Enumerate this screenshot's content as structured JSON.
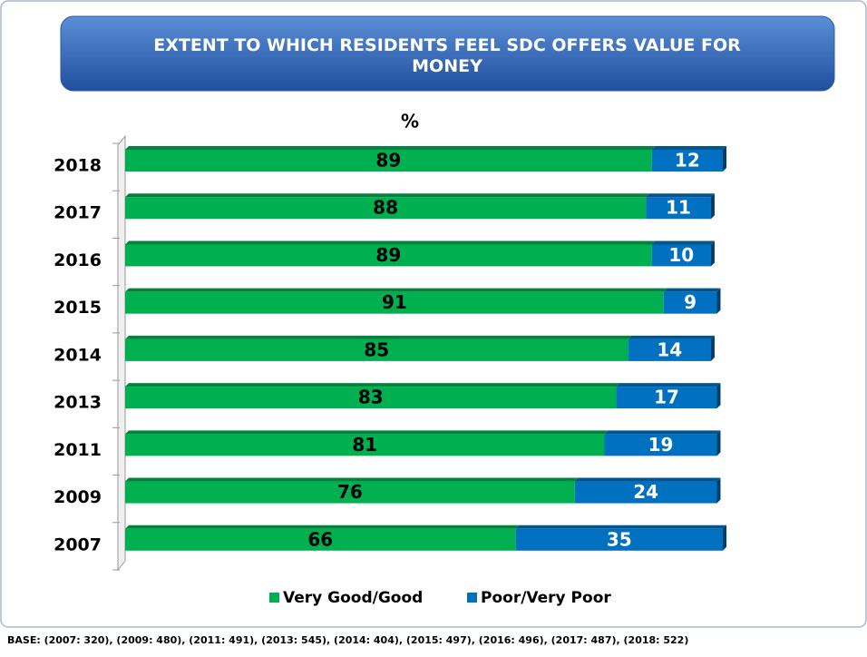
{
  "chart_data": {
    "type": "stacked_barh",
    "title": "EXTENT TO WHICH RESIDENTS FEEL SDC OFFERS VALUE FOR MONEY",
    "unit_label": "%",
    "categories": [
      "2018",
      "2017",
      "2016",
      "2015",
      "2014",
      "2013",
      "2011",
      "2009",
      "2007"
    ],
    "series": [
      {
        "name": "Very Good/Good",
        "color": "#00b050",
        "values": [
          89,
          88,
          89,
          91,
          85,
          83,
          81,
          76,
          66
        ]
      },
      {
        "name": "Poor/Very Poor",
        "color": "#0070c0",
        "values": [
          12,
          11,
          10,
          9,
          14,
          17,
          19,
          24,
          35
        ]
      }
    ],
    "xlim": [
      0,
      101
    ],
    "footnote": "BASE: (2007: 320), (2009: 480), (2011: 491), (2013: 545), (2014: 404), (2015: 497), (2016: 496), (2017: 487), (2018: 522)"
  }
}
